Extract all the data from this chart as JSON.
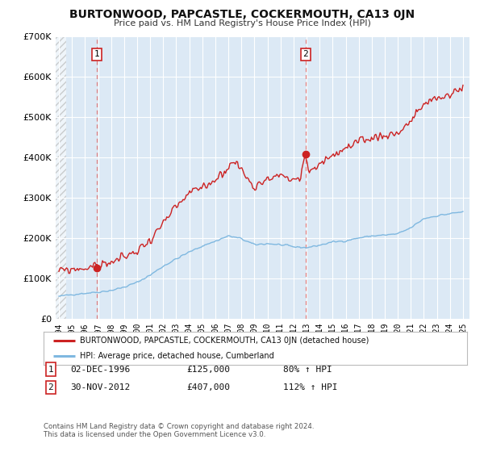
{
  "title": "BURTONWOOD, PAPCASTLE, COCKERMOUTH, CA13 0JN",
  "subtitle": "Price paid vs. HM Land Registry's House Price Index (HPI)",
  "ylim": [
    0,
    700000
  ],
  "yticks": [
    0,
    100000,
    200000,
    300000,
    400000,
    500000,
    600000,
    700000
  ],
  "ytick_labels": [
    "£0",
    "£100K",
    "£200K",
    "£300K",
    "£400K",
    "£500K",
    "£600K",
    "£700K"
  ],
  "xlim_start": 1993.75,
  "xlim_end": 2025.5,
  "xticks": [
    1994,
    1995,
    1996,
    1997,
    1998,
    1999,
    2000,
    2001,
    2002,
    2003,
    2004,
    2005,
    2006,
    2007,
    2008,
    2009,
    2010,
    2011,
    2012,
    2013,
    2014,
    2015,
    2016,
    2017,
    2018,
    2019,
    2020,
    2021,
    2022,
    2023,
    2024,
    2025
  ],
  "background_color": "#ffffff",
  "plot_bg_color": "#dce9f5",
  "grid_color": "#ffffff",
  "hpi_line_color": "#7fb8e0",
  "price_line_color": "#cc2222",
  "marker1_date": 1996.917,
  "marker1_price": 125000,
  "marker1_label": "02-DEC-1996",
  "marker1_pct": "80%",
  "marker2_date": 2012.917,
  "marker2_price": 407000,
  "marker2_label": "30-NOV-2012",
  "marker2_pct": "112%",
  "vline_color": "#e08080",
  "legend_red_label": "BURTONWOOD, PAPCASTLE, COCKERMOUTH, CA13 0JN (detached house)",
  "legend_blue_label": "HPI: Average price, detached house, Cumberland",
  "footer_text": "Contains HM Land Registry data © Crown copyright and database right 2024.\nThis data is licensed under the Open Government Licence v3.0.",
  "hatch_end": 1994.58
}
